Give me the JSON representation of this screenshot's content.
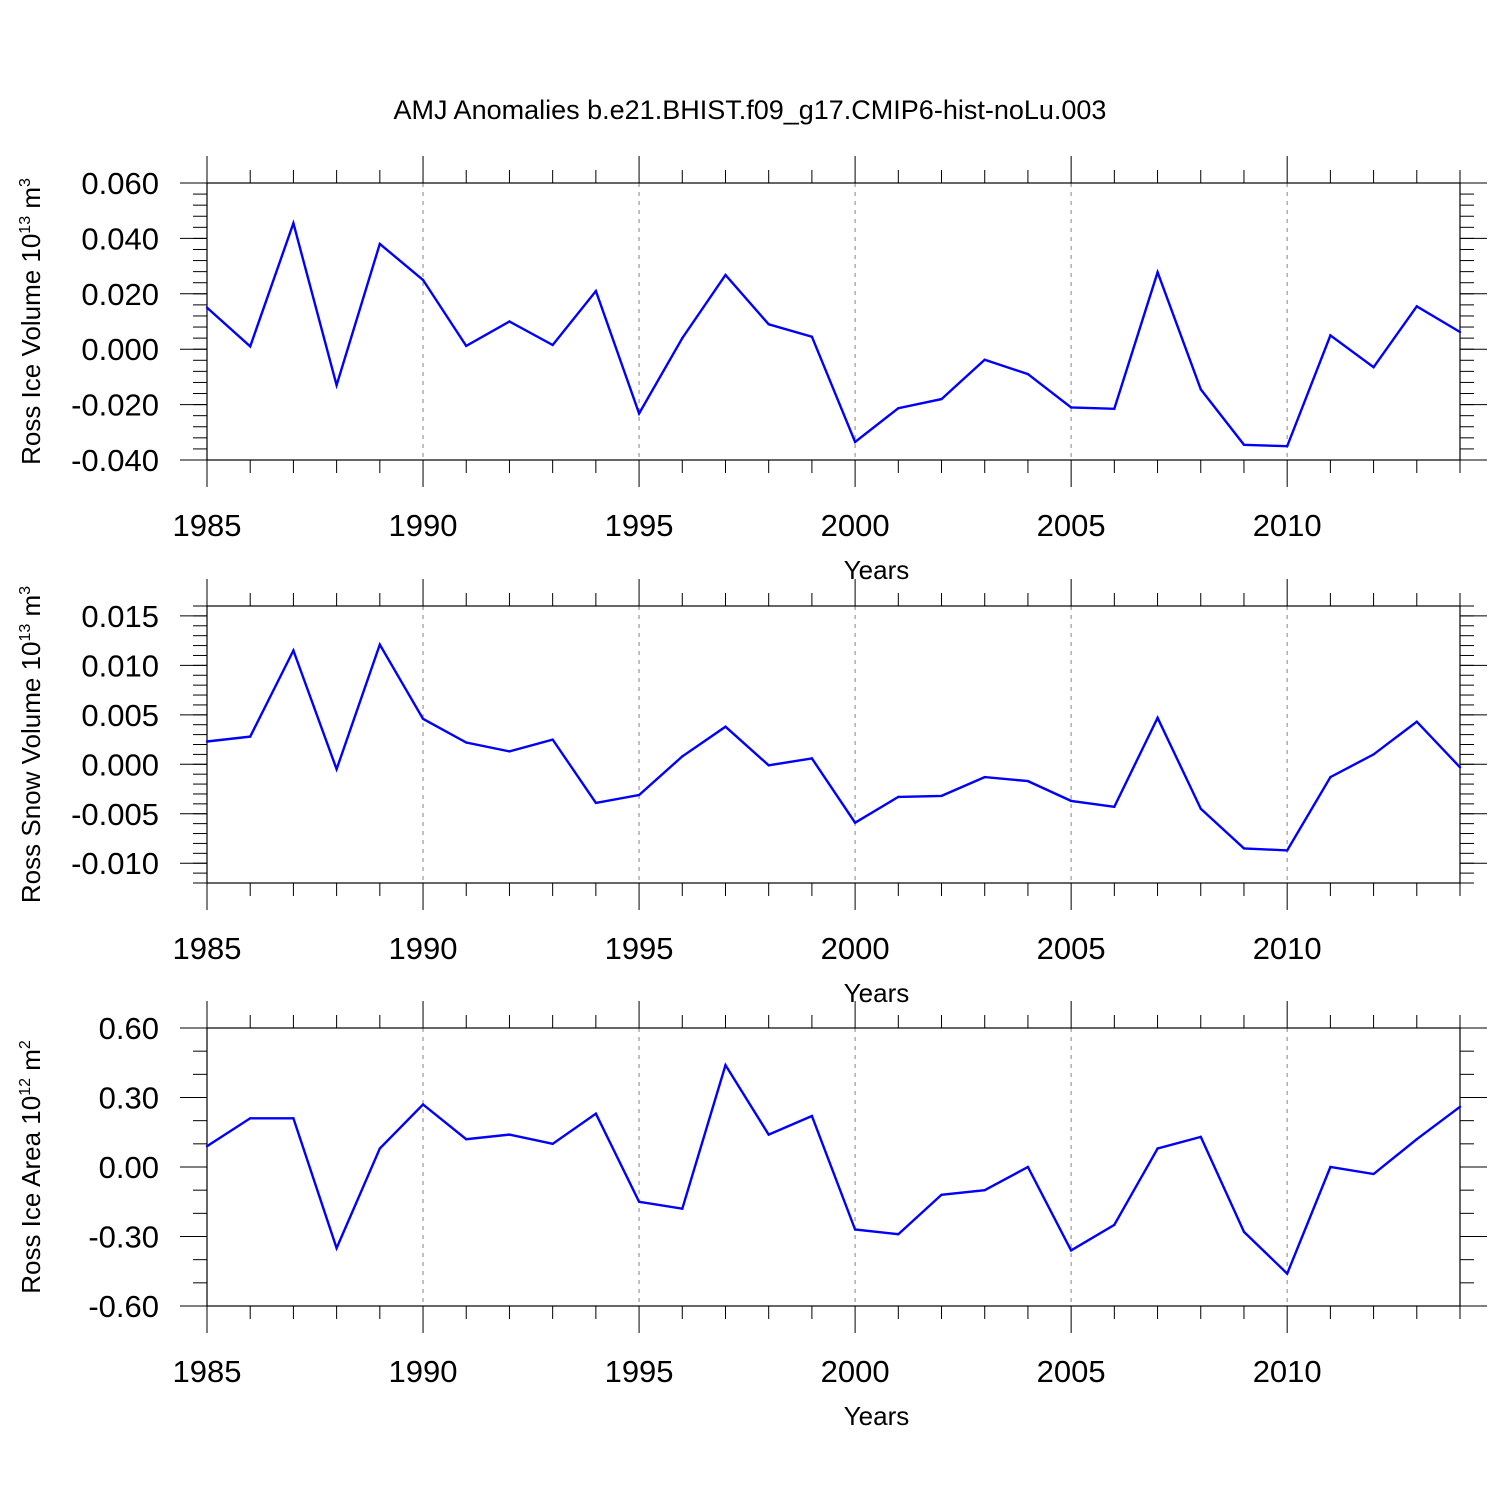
{
  "title": "AMJ Anomalies b.e21.BHIST.f09_g17.CMIP6-hist-noLu.003",
  "colors": {
    "series": "#0000ff",
    "axis": "#000000",
    "gridline": "#999999"
  },
  "chart_data": [
    {
      "type": "line",
      "ylabel": {
        "prefix": "Ross Ice Volume 10",
        "exp": "13",
        "unit": " m",
        "unit_exp": "3"
      },
      "xlabel": "Years",
      "xlim": [
        1985,
        2014
      ],
      "ylim": [
        -0.04,
        0.06
      ],
      "yticks": [
        -0.04,
        -0.02,
        0.0,
        0.02,
        0.04,
        0.06
      ],
      "ytick_labels": [
        "-0.040",
        "-0.020",
        "0.000",
        "0.020",
        "0.040",
        "0.060"
      ],
      "yminor_step": 0.004,
      "xticks": [
        1985,
        1990,
        1995,
        2000,
        2005,
        2010
      ],
      "xtick_labels": [
        "1985",
        "1990",
        "1995",
        "2000",
        "2005",
        "2010"
      ],
      "grid": "vertical-dashed",
      "x": [
        1985,
        1986,
        1987,
        1988,
        1989,
        1990,
        1991,
        1992,
        1993,
        1994,
        1995,
        1996,
        1997,
        1998,
        1999,
        2000,
        2001,
        2002,
        2003,
        2004,
        2005,
        2006,
        2007,
        2008,
        2009,
        2010,
        2011,
        2012,
        2013,
        2014
      ],
      "series": [
        {
          "values": [
            0.015,
            0.001,
            0.0455,
            -0.013,
            0.038,
            0.025,
            0.0012,
            0.01,
            0.0015,
            0.021,
            -0.0232,
            0.004,
            0.0268,
            0.009,
            0.0045,
            -0.0335,
            -0.0213,
            -0.018,
            -0.0038,
            -0.009,
            -0.021,
            -0.0215,
            0.0278,
            -0.0145,
            -0.0345,
            -0.035,
            0.005,
            -0.0065,
            0.0155,
            0.0062
          ]
        }
      ]
    },
    {
      "type": "line",
      "ylabel": {
        "prefix": "Ross Snow Volume 10",
        "exp": "13",
        "unit": " m",
        "unit_exp": "3"
      },
      "xlabel": "Years",
      "xlim": [
        1985,
        2014
      ],
      "ylim": [
        -0.012,
        0.016
      ],
      "yticks": [
        -0.01,
        -0.005,
        0.0,
        0.005,
        0.01,
        0.015
      ],
      "ytick_labels": [
        "-0.010",
        "-0.005",
        "0.000",
        "0.005",
        "0.010",
        "0.015"
      ],
      "yminor_step": 0.001,
      "xticks": [
        1985,
        1990,
        1995,
        2000,
        2005,
        2010
      ],
      "xtick_labels": [
        "1985",
        "1990",
        "1995",
        "2000",
        "2005",
        "2010"
      ],
      "grid": "vertical-dashed",
      "x": [
        1985,
        1986,
        1987,
        1988,
        1989,
        1990,
        1991,
        1992,
        1993,
        1994,
        1995,
        1996,
        1997,
        1998,
        1999,
        2000,
        2001,
        2002,
        2003,
        2004,
        2005,
        2006,
        2007,
        2008,
        2009,
        2010,
        2011,
        2012,
        2013,
        2014
      ],
      "series": [
        {
          "values": [
            0.0023,
            0.0028,
            0.0115,
            -0.0005,
            0.0121,
            0.0046,
            0.0022,
            0.0013,
            0.0025,
            -0.0039,
            -0.0031,
            0.0008,
            0.0038,
            -0.0001,
            0.0006,
            -0.0059,
            -0.0033,
            -0.0032,
            -0.0013,
            -0.0017,
            -0.0037,
            -0.0043,
            0.0047,
            -0.0045,
            -0.0085,
            -0.0087,
            -0.0013,
            0.001,
            0.0043,
            -0.0003
          ]
        }
      ]
    },
    {
      "type": "line",
      "ylabel": {
        "prefix": "Ross Ice Area 10",
        "exp": "12",
        "unit": " m",
        "unit_exp": "2"
      },
      "xlabel": "Years",
      "xlim": [
        1985,
        2014
      ],
      "ylim": [
        -0.6,
        0.6
      ],
      "yticks": [
        -0.6,
        -0.3,
        0.0,
        0.3,
        0.6
      ],
      "ytick_labels": [
        "-0.60",
        "-0.30",
        "0.00",
        "0.30",
        "0.60"
      ],
      "yminor_step": 0.1,
      "xticks": [
        1985,
        1990,
        1995,
        2000,
        2005,
        2010
      ],
      "xtick_labels": [
        "1985",
        "1990",
        "1995",
        "2000",
        "2005",
        "2010"
      ],
      "grid": "vertical-dashed",
      "x": [
        1985,
        1986,
        1987,
        1988,
        1989,
        1990,
        1991,
        1992,
        1993,
        1994,
        1995,
        1996,
        1997,
        1998,
        1999,
        2000,
        2001,
        2002,
        2003,
        2004,
        2005,
        2006,
        2007,
        2008,
        2009,
        2010,
        2011,
        2012,
        2013,
        2014
      ],
      "series": [
        {
          "values": [
            0.09,
            0.21,
            0.21,
            -0.35,
            0.08,
            0.27,
            0.12,
            0.14,
            0.1,
            0.23,
            -0.15,
            -0.18,
            0.44,
            0.14,
            0.22,
            -0.27,
            -0.29,
            -0.12,
            -0.1,
            0.0,
            -0.36,
            -0.25,
            0.08,
            0.13,
            -0.28,
            -0.46,
            0.0,
            -0.03,
            0.12,
            0.26
          ]
        }
      ]
    }
  ]
}
